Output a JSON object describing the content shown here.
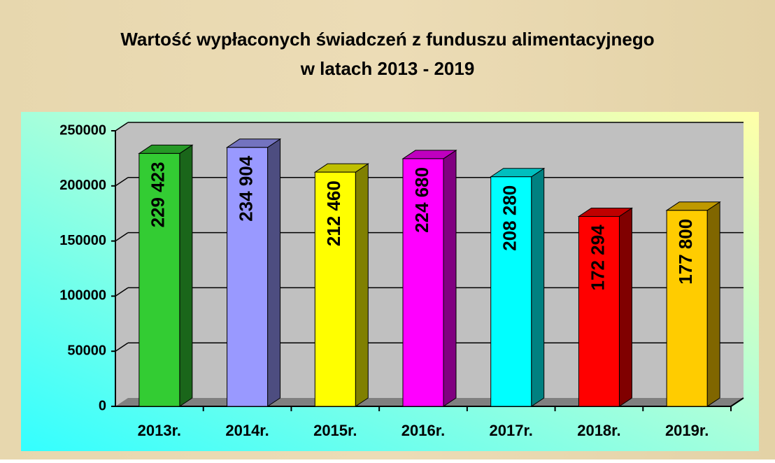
{
  "chart_data": {
    "type": "bar3d",
    "title": "Wartość wypłaconych świadczeń z funduszu alimentacyjnego",
    "subtitle": "w latach 2013 - 2019",
    "categories": [
      "2013r.",
      "2014r.",
      "2015r.",
      "2016r.",
      "2017r.",
      "2018r.",
      "2019r."
    ],
    "values": [
      229423,
      234904,
      212460,
      224680,
      208280,
      172294,
      177800
    ],
    "value_labels": [
      "229 423",
      "234 904",
      "212 460",
      "224 680",
      "208 280",
      "172 294",
      "177 800"
    ],
    "colors": [
      "#33cc33",
      "#9999ff",
      "#ffff00",
      "#ff00ff",
      "#00ffff",
      "#ff0000",
      "#ffcc00"
    ],
    "ylim": [
      0,
      250000
    ],
    "yticks": [
      0,
      50000,
      100000,
      150000,
      200000,
      250000
    ],
    "grid": true
  }
}
